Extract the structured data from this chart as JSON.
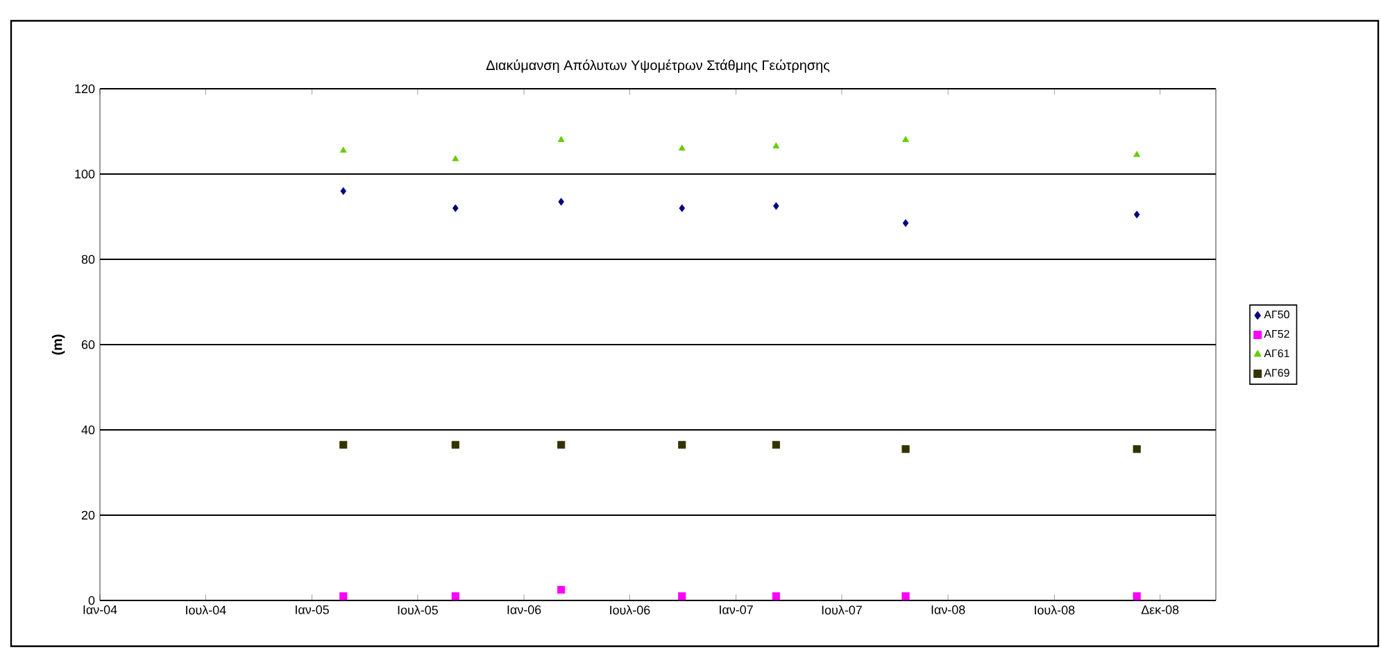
{
  "chart_data": {
    "type": "scatter",
    "title": "Διακύμανση Απόλυτων Υψομέτρων Στάθμης Γεώτρησης",
    "ylabel": "(m)",
    "x": [
      "2005-02-23",
      "2005-09-04",
      "2006-03-05",
      "2006-09-29",
      "2007-03-10",
      "2007-10-19",
      "2008-11-20"
    ],
    "series": [
      {
        "name": "ΑΓ50",
        "color": "#000080",
        "marker": "diamond",
        "values": [
          96,
          92,
          93.5,
          92,
          92.5,
          88.5,
          90.5
        ]
      },
      {
        "name": "ΑΓ52",
        "color": "#ff00ff",
        "marker": "square",
        "values": [
          1,
          1,
          2.5,
          1,
          1,
          1,
          1
        ]
      },
      {
        "name": "ΑΓ61",
        "color": "#66cc00",
        "marker": "triangle",
        "values": [
          105.5,
          103.5,
          108,
          106,
          106.5,
          108,
          104.5
        ]
      },
      {
        "name": "ΑΓ69",
        "color": "#333300",
        "marker": "square",
        "values": [
          36.5,
          36.5,
          36.5,
          36.5,
          36.5,
          35.5,
          35.5
        ]
      }
    ],
    "xlim": [
      "2004-01-01",
      "2009-04-05"
    ],
    "xticks": [
      {
        "value": "2004-01-01",
        "label": "Ιαν-04"
      },
      {
        "value": "2004-07-01",
        "label": "Ιουλ-04"
      },
      {
        "value": "2004-12-31",
        "label": "Ιαν-05"
      },
      {
        "value": "2005-07-01",
        "label": "Ιουλ-05"
      },
      {
        "value": "2005-12-31",
        "label": "Ιαν-06"
      },
      {
        "value": "2006-07-01",
        "label": "Ιουλ-06"
      },
      {
        "value": "2006-12-31",
        "label": "Ιαν-07"
      },
      {
        "value": "2007-07-01",
        "label": "Ιουλ-07"
      },
      {
        "value": "2007-12-31",
        "label": "Ιαν-08"
      },
      {
        "value": "2008-07-01",
        "label": "Ιουλ-08"
      },
      {
        "value": "2008-12-30",
        "label": "Δεκ-08"
      }
    ],
    "ylim": [
      0,
      120
    ],
    "yticks": [
      0,
      20,
      40,
      60,
      80,
      100,
      120
    ],
    "grid": "y",
    "legend": "right"
  }
}
